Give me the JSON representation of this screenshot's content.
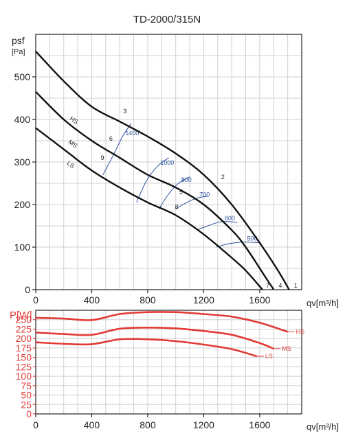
{
  "chart_data": [
    {
      "type": "line",
      "title": "TD-2000/315N",
      "ylabel": "psf",
      "ylabel_unit": "[Pa]",
      "xlabel": "qv[m³/h]",
      "xlim": [
        0,
        1900
      ],
      "ylim": [
        0,
        600
      ],
      "xticks": [
        0,
        400,
        800,
        1200,
        1600
      ],
      "yticks": [
        0,
        100,
        200,
        300,
        400,
        500
      ],
      "grid": true,
      "series": [
        {
          "name": "HS",
          "color": "#111111",
          "x": [
            0,
            200,
            400,
            600,
            800,
            1000,
            1200,
            1400,
            1600,
            1740,
            1810
          ],
          "y": [
            560,
            490,
            430,
            395,
            360,
            320,
            270,
            200,
            110,
            40,
            0
          ]
        },
        {
          "name": "MS",
          "color": "#111111",
          "x": [
            0,
            200,
            400,
            600,
            800,
            1000,
            1200,
            1400,
            1500,
            1640,
            1700
          ],
          "y": [
            465,
            400,
            350,
            310,
            270,
            240,
            200,
            140,
            100,
            30,
            0
          ]
        },
        {
          "name": "LS",
          "color": "#111111",
          "x": [
            0,
            200,
            400,
            600,
            800,
            1000,
            1200,
            1400,
            1500,
            1620
          ],
          "y": [
            380,
            330,
            280,
            240,
            205,
            175,
            130,
            75,
            45,
            0
          ]
        }
      ],
      "rpm_curves": [
        {
          "label": "1400",
          "x": [
            480,
            560,
            620,
            680
          ],
          "y": [
            270,
            320,
            360,
            390
          ]
        },
        {
          "label": "1000",
          "x": [
            720,
            790,
            870,
            950
          ],
          "y": [
            205,
            255,
            290,
            310
          ]
        },
        {
          "label": "800",
          "x": [
            880,
            950,
            1020,
            1100
          ],
          "y": [
            190,
            225,
            250,
            265
          ]
        },
        {
          "label": "700",
          "x": [
            1000,
            1080,
            1150,
            1230
          ],
          "y": [
            190,
            205,
            215,
            220
          ]
        },
        {
          "label": "600",
          "x": [
            1150,
            1230,
            1330,
            1440
          ],
          "y": [
            140,
            150,
            160,
            158
          ]
        },
        {
          "label": "500",
          "x": [
            1290,
            1380,
            1490,
            1610
          ],
          "y": [
            100,
            108,
            112,
            110
          ]
        }
      ],
      "point_labels": [
        {
          "label": "1",
          "x": 1830,
          "y": 0
        },
        {
          "label": "2",
          "x": 1310,
          "y": 255
        },
        {
          "label": "3",
          "x": 610,
          "y": 410
        },
        {
          "label": "4",
          "x": 1720,
          "y": 0
        },
        {
          "label": "5",
          "x": 1010,
          "y": 220
        },
        {
          "label": "6",
          "x": 510,
          "y": 345
        },
        {
          "label": "7",
          "x": 1630,
          "y": 0
        },
        {
          "label": "8",
          "x": 980,
          "y": 185
        },
        {
          "label": "9",
          "x": 450,
          "y": 300
        }
      ]
    },
    {
      "type": "line",
      "ylabel": "P[W]",
      "xlabel": "qv[m³/h]",
      "xlim": [
        0,
        1900
      ],
      "ylim": [
        0,
        275
      ],
      "xticks": [
        0,
        400,
        800,
        1200,
        1600
      ],
      "yticks": [
        0,
        25,
        50,
        75,
        100,
        125,
        150,
        175,
        200,
        225,
        250
      ],
      "grid": true,
      "series": [
        {
          "name": "HS",
          "color": "#e23a35",
          "x": [
            0,
            200,
            400,
            600,
            800,
            1000,
            1200,
            1400,
            1600,
            1800
          ],
          "y": [
            255,
            253,
            249,
            265,
            270,
            270,
            265,
            258,
            242,
            218
          ]
        },
        {
          "name": "MS",
          "color": "#e23a35",
          "x": [
            0,
            200,
            400,
            600,
            800,
            1000,
            1200,
            1400,
            1600,
            1700
          ],
          "y": [
            216,
            212,
            210,
            226,
            229,
            227,
            220,
            210,
            188,
            173
          ]
        },
        {
          "name": "LS",
          "color": "#e23a35",
          "x": [
            0,
            200,
            400,
            600,
            800,
            1000,
            1200,
            1400,
            1580
          ],
          "y": [
            190,
            186,
            185,
            198,
            198,
            193,
            184,
            172,
            153
          ]
        }
      ]
    }
  ]
}
